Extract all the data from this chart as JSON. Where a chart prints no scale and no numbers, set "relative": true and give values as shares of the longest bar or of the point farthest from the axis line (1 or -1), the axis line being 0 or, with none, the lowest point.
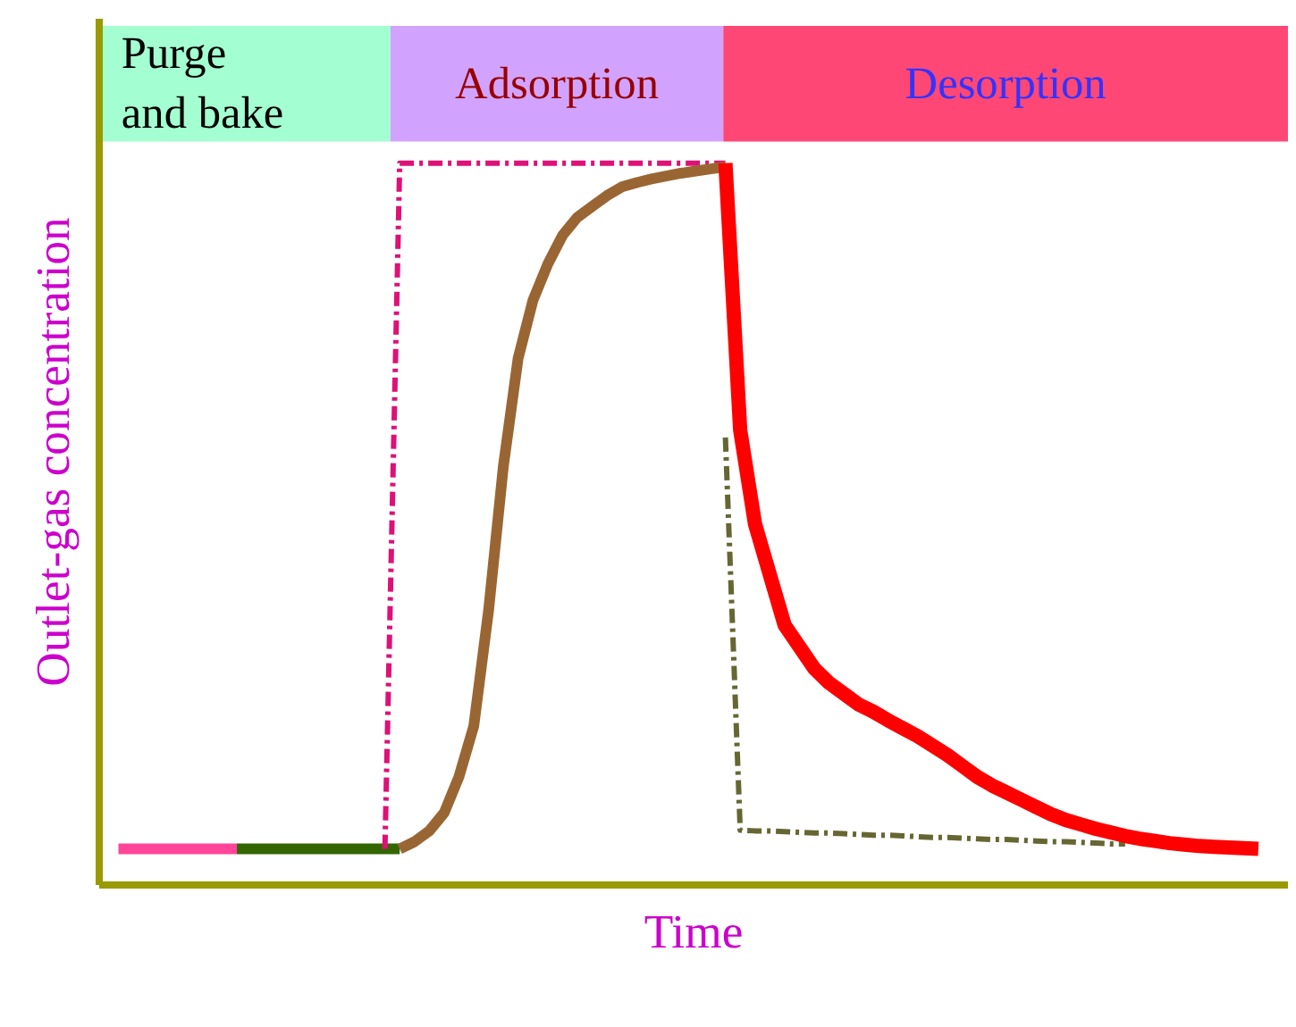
{
  "chart_data": {
    "type": "line",
    "relative": true,
    "xlabel": "Time",
    "ylabel": "Outlet-gas concentration",
    "annotations": [
      "Purge\nand bake",
      "Adsorption",
      "Desorption"
    ],
    "categories": [
      null,
      null,
      null,
      null,
      null,
      null,
      null,
      null,
      null,
      null,
      null,
      null,
      null,
      null,
      null,
      null,
      null,
      null,
      null,
      null,
      null,
      null,
      null,
      null,
      null,
      null,
      null,
      null,
      null,
      null,
      null,
      null,
      null,
      null,
      null,
      null,
      null,
      null,
      null,
      null,
      null,
      null,
      null,
      null,
      null,
      null,
      null,
      null,
      null,
      null,
      null,
      null,
      null,
      null,
      null,
      null,
      null,
      null,
      null,
      null,
      null,
      null,
      null,
      null,
      null,
      null,
      null,
      null,
      null,
      null,
      null,
      null,
      null,
      null,
      null,
      null,
      null,
      null,
      null,
      null,
      null
    ],
    "series": [
      {
        "color": "#ff4499",
        "values": [
          null,
          0.05,
          0.05,
          0.05,
          0.05,
          0.05,
          0.05,
          0.05,
          0.05,
          0.05,
          null,
          null,
          null,
          null,
          null,
          null,
          null,
          null,
          null,
          null,
          null,
          null,
          null,
          null,
          null,
          null,
          null,
          null,
          null,
          null,
          null,
          null,
          null,
          null,
          null,
          null,
          null,
          null,
          null,
          null,
          null,
          null,
          null,
          null,
          null,
          null,
          null,
          null,
          null,
          null,
          null,
          null,
          null,
          null,
          null,
          null,
          null,
          null,
          null,
          null,
          null,
          null,
          null,
          null,
          null,
          null,
          null,
          null,
          null,
          null,
          null,
          null,
          null,
          null,
          null,
          null,
          null,
          null,
          null,
          null,
          null
        ]
      },
      {
        "color": "#336600",
        "values": [
          null,
          null,
          null,
          null,
          null,
          null,
          null,
          null,
          null,
          0.05,
          0.05,
          0.05,
          0.05,
          0.05,
          0.05,
          0.05,
          0.05,
          0.05,
          0.05,
          0.05,
          0.05,
          null,
          null,
          null,
          null,
          null,
          null,
          null,
          null,
          null,
          null,
          null,
          null,
          null,
          null,
          null,
          null,
          null,
          null,
          null,
          null,
          null,
          null,
          null,
          null,
          null,
          null,
          null,
          null,
          null,
          null,
          null,
          null,
          null,
          null,
          null,
          null,
          null,
          null,
          null,
          null,
          null,
          null,
          null,
          null,
          null,
          null,
          null,
          null,
          null,
          null,
          null,
          null,
          null,
          null,
          null,
          null,
          null,
          null,
          null,
          null
        ]
      },
      {
        "color": "#dd1177",
        "line_style": "dashed",
        "values": [
          null,
          null,
          null,
          null,
          null,
          null,
          null,
          null,
          null,
          null,
          null,
          null,
          null,
          null,
          null,
          null,
          null,
          null,
          null,
          0.05,
          1.0,
          1.0,
          1.0,
          1.0,
          1.0,
          1.0,
          1.0,
          1.0,
          1.0,
          1.0,
          1.0,
          1.0,
          1.0,
          1.0,
          1.0,
          1.0,
          1.0,
          1.0,
          1.0,
          1.0,
          1.0,
          1.0,
          1.0,
          null,
          null,
          null,
          null,
          null,
          null,
          null,
          null,
          null,
          null,
          null,
          null,
          null,
          null,
          null,
          null,
          null,
          null,
          null,
          null,
          null,
          null,
          null,
          null,
          null,
          null,
          null,
          null,
          null,
          null,
          null,
          null,
          null,
          null,
          null,
          null,
          null,
          null
        ]
      },
      {
        "color": "#666633",
        "line_style": "dashed",
        "values": [
          null,
          null,
          null,
          null,
          null,
          null,
          null,
          null,
          null,
          null,
          null,
          null,
          null,
          null,
          null,
          null,
          null,
          null,
          null,
          null,
          null,
          null,
          null,
          null,
          null,
          null,
          null,
          null,
          null,
          null,
          null,
          null,
          null,
          null,
          null,
          null,
          null,
          null,
          null,
          null,
          null,
          null,
          0.62,
          0.076,
          0.075,
          0.075,
          0.074,
          0.073,
          0.072,
          0.072,
          0.071,
          0.07,
          0.069,
          0.069,
          0.068,
          0.067,
          0.066,
          0.066,
          0.065,
          0.064,
          0.063,
          0.063,
          0.062,
          0.061,
          0.06,
          0.06,
          0.059,
          0.058,
          0.057,
          0.057,
          null,
          null,
          null,
          null,
          null,
          null,
          null,
          null,
          null,
          null,
          null
        ]
      },
      {
        "color": "#996633",
        "values": [
          null,
          null,
          null,
          null,
          null,
          null,
          null,
          null,
          null,
          null,
          null,
          null,
          null,
          null,
          null,
          null,
          null,
          null,
          null,
          null,
          0.05,
          0.06,
          0.075,
          0.1,
          0.15,
          0.22,
          0.38,
          0.58,
          0.73,
          0.81,
          0.86,
          0.9,
          0.925,
          0.94,
          0.955,
          0.967,
          0.973,
          0.978,
          0.982,
          0.986,
          0.989,
          0.992,
          0.995,
          null,
          null,
          null,
          null,
          null,
          null,
          null,
          null,
          null,
          null,
          null,
          null,
          null,
          null,
          null,
          null,
          null,
          null,
          null,
          null,
          null,
          null,
          null,
          null,
          null,
          null,
          null,
          null,
          null,
          null,
          null,
          null,
          null,
          null,
          null,
          null,
          null,
          null
        ]
      },
      {
        "color": "#ff0000",
        "values": [
          null,
          null,
          null,
          null,
          null,
          null,
          null,
          null,
          null,
          null,
          null,
          null,
          null,
          null,
          null,
          null,
          null,
          null,
          null,
          null,
          null,
          null,
          null,
          null,
          null,
          null,
          null,
          null,
          null,
          null,
          null,
          null,
          null,
          null,
          null,
          null,
          null,
          null,
          null,
          null,
          null,
          null,
          1.0,
          0.63,
          0.5,
          0.43,
          0.36,
          0.33,
          0.3,
          0.28,
          0.265,
          0.25,
          0.24,
          0.228,
          0.217,
          0.206,
          0.193,
          0.18,
          0.165,
          0.15,
          0.138,
          0.128,
          0.118,
          0.108,
          0.098,
          0.09,
          0.084,
          0.078,
          0.073,
          0.068,
          0.064,
          0.061,
          0.058,
          0.056,
          0.054,
          0.053,
          0.052,
          0.051,
          0.05,
          null,
          null
        ]
      }
    ]
  }
}
